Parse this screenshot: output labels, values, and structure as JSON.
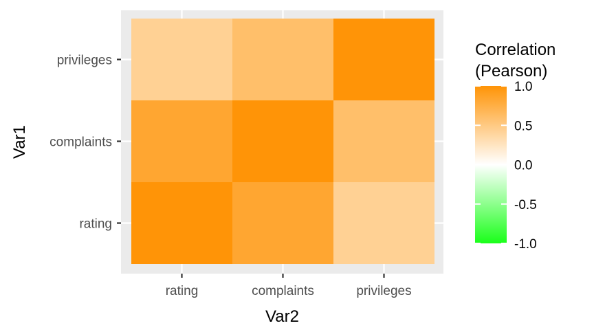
{
  "chart_data": {
    "type": "heatmap",
    "title": "",
    "xlabel": "Var2",
    "ylabel": "Var1",
    "x_categories": [
      "rating",
      "complaints",
      "privileges"
    ],
    "y_categories": [
      "rating",
      "complaints",
      "privileges"
    ],
    "values": [
      [
        1.0,
        0.83,
        0.43
      ],
      [
        0.83,
        1.0,
        0.6
      ],
      [
        0.43,
        0.6,
        1.0
      ]
    ],
    "grid": true,
    "colors": {
      "high": "#ff9407",
      "mid": "#ffffff",
      "low": "#1aff1a",
      "panel_background": "#ebebeb",
      "grid_line": "#ffffff"
    },
    "legend": {
      "title_lines": [
        "Correlation",
        "(Pearson)"
      ],
      "position": "right",
      "limits": [
        -1.0,
        1.0
      ],
      "breaks": [
        1.0,
        0.5,
        0.0,
        -0.5,
        -1.0
      ],
      "break_labels": [
        "1.0",
        "0.5",
        "0.0",
        "-0.5",
        "-1.0"
      ]
    }
  }
}
